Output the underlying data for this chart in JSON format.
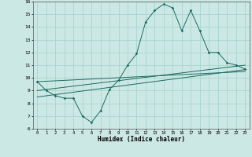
{
  "xlabel": "Humidex (Indice chaleur)",
  "ylabel": "",
  "bg_color": "#cce8e4",
  "grid_color": "#aad4ce",
  "line_color": "#1a6b60",
  "xlim": [
    -0.5,
    23.5
  ],
  "ylim": [
    6,
    16
  ],
  "xticks": [
    0,
    1,
    2,
    3,
    4,
    5,
    6,
    7,
    8,
    9,
    10,
    11,
    12,
    13,
    14,
    15,
    16,
    17,
    18,
    19,
    20,
    21,
    22,
    23
  ],
  "yticks": [
    6,
    7,
    8,
    9,
    10,
    11,
    12,
    13,
    14,
    15,
    16
  ],
  "line1_x": [
    0,
    1,
    2,
    3,
    4,
    5,
    6,
    7,
    8,
    9,
    10,
    11,
    12,
    13,
    14,
    15,
    16,
    17,
    18,
    19,
    20,
    21,
    22,
    23
  ],
  "line1_y": [
    9.7,
    9.0,
    8.6,
    8.4,
    8.4,
    7.0,
    6.5,
    7.4,
    9.1,
    9.8,
    11.0,
    11.9,
    14.4,
    15.3,
    15.8,
    15.5,
    13.7,
    15.3,
    13.7,
    12.0,
    12.0,
    11.2,
    11.0,
    10.7
  ],
  "line2_x": [
    0,
    23
  ],
  "line2_y": [
    9.0,
    11.0
  ],
  "line3_x": [
    0,
    23
  ],
  "line3_y": [
    8.5,
    10.65
  ],
  "line4_x": [
    0,
    23
  ],
  "line4_y": [
    9.7,
    10.5
  ]
}
